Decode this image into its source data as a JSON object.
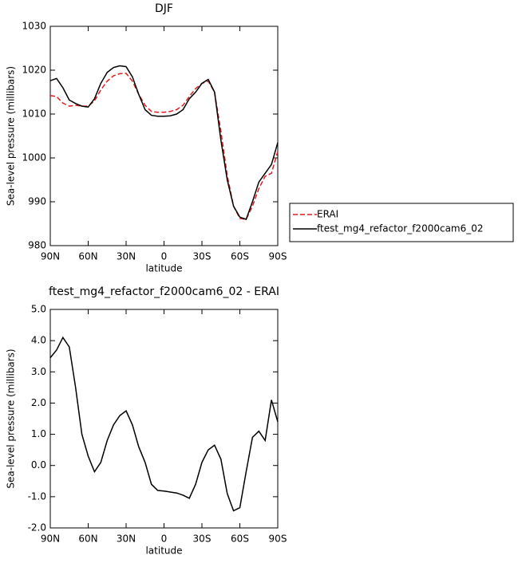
{
  "chart_data": [
    {
      "type": "line",
      "title": "DJF",
      "xlabel": "latitude",
      "ylabel": "Sea-level pressure (millibars)",
      "x": [
        90,
        85,
        80,
        75,
        70,
        65,
        60,
        55,
        50,
        45,
        40,
        35,
        30,
        25,
        20,
        15,
        10,
        5,
        0,
        -5,
        -10,
        -15,
        -20,
        -25,
        -30,
        -35,
        -40,
        -45,
        -50,
        -55,
        -60,
        -65,
        -70,
        -75,
        -80,
        -85,
        -90
      ],
      "series": [
        {
          "name": "ERAI",
          "color": "#e41a1c",
          "dash": true,
          "values": [
            1014.2,
            1014,
            1012.5,
            1011.8,
            1012,
            1011.8,
            1011.8,
            1013,
            1015.5,
            1017.5,
            1018.7,
            1019.2,
            1019.3,
            1017.5,
            1014.5,
            1012,
            1010.6,
            1010.4,
            1010.4,
            1010.6,
            1011,
            1012,
            1014,
            1015.8,
            1017,
            1017.5,
            1015,
            1006,
            996,
            989,
            986.2,
            986,
            989,
            993,
            995.8,
            996.5,
            1001.5
          ]
        },
        {
          "name": "ftest_mg4_refactor_f2000cam6_02",
          "color": "#000000",
          "dash": false,
          "values": [
            1017.6,
            1018.1,
            1016,
            1013.2,
            1012.4,
            1011.8,
            1011.6,
            1013.5,
            1017,
            1019.5,
            1020.6,
            1021,
            1020.8,
            1018.5,
            1014.5,
            1011,
            1009.7,
            1009.5,
            1009.5,
            1009.6,
            1010,
            1011,
            1013.5,
            1015,
            1017,
            1017.9,
            1015,
            1004,
            995,
            989,
            986.5,
            986,
            990,
            994.5,
            996.5,
            998.5,
            1003.5
          ]
        }
      ],
      "xlim": [
        90,
        -90
      ],
      "xticks": [
        {
          "value": 90,
          "label": "90N"
        },
        {
          "value": 60,
          "label": "60N"
        },
        {
          "value": 30,
          "label": "30N"
        },
        0,
        {
          "value": -30,
          "label": "30S"
        },
        {
          "value": -60,
          "label": "60S"
        },
        {
          "value": -90,
          "label": "90S"
        }
      ],
      "ylim": [
        980,
        1030
      ],
      "yticks": [
        980,
        990,
        1000,
        1010,
        1020,
        1030
      ],
      "legend": "right"
    },
    {
      "type": "line",
      "title": "ftest_mg4_refactor_f2000cam6_02 - ERAI",
      "xlabel": "latitude",
      "ylabel": "Sea-level pressure (millibars)",
      "x": [
        90,
        85,
        80,
        75,
        70,
        65,
        60,
        55,
        50,
        45,
        40,
        35,
        30,
        25,
        20,
        15,
        10,
        5,
        0,
        -5,
        -10,
        -15,
        -20,
        -25,
        -30,
        -35,
        -40,
        -45,
        -50,
        -55,
        -60,
        -65,
        -70,
        -75,
        -80,
        -85,
        -90
      ],
      "series": [
        {
          "color": "#000000",
          "dash": false,
          "values": [
            3.45,
            3.7,
            4.1,
            3.8,
            2.5,
            1.0,
            0.3,
            -0.2,
            0.1,
            0.8,
            1.3,
            1.6,
            1.75,
            1.3,
            0.6,
            0.1,
            -0.6,
            -0.8,
            -0.82,
            -0.85,
            -0.88,
            -0.95,
            -1.05,
            -0.6,
            0.1,
            0.5,
            0.65,
            0.2,
            -0.9,
            -1.45,
            -1.35,
            -0.2,
            0.9,
            1.1,
            0.8,
            2.1,
            1.4
          ]
        }
      ],
      "xlim": [
        90,
        -90
      ],
      "xticks": [
        {
          "value": 90,
          "label": "90N"
        },
        {
          "value": 60,
          "label": "60N"
        },
        {
          "value": 30,
          "label": "30N"
        },
        0,
        {
          "value": -30,
          "label": "30S"
        },
        {
          "value": -60,
          "label": "60S"
        },
        {
          "value": -90,
          "label": "90S"
        }
      ],
      "ylim": [
        -2,
        5
      ],
      "yticks": [
        {
          "value": -2,
          "label": "-2.0"
        },
        {
          "value": -1,
          "label": "-1.0"
        },
        {
          "value": 0,
          "label": "0.0"
        },
        {
          "value": 1,
          "label": "1.0"
        },
        {
          "value": 2,
          "label": "2.0"
        },
        {
          "value": 3,
          "label": "3.0"
        },
        {
          "value": 4,
          "label": "4.0"
        },
        {
          "value": 5,
          "label": "5.0"
        }
      ]
    }
  ]
}
